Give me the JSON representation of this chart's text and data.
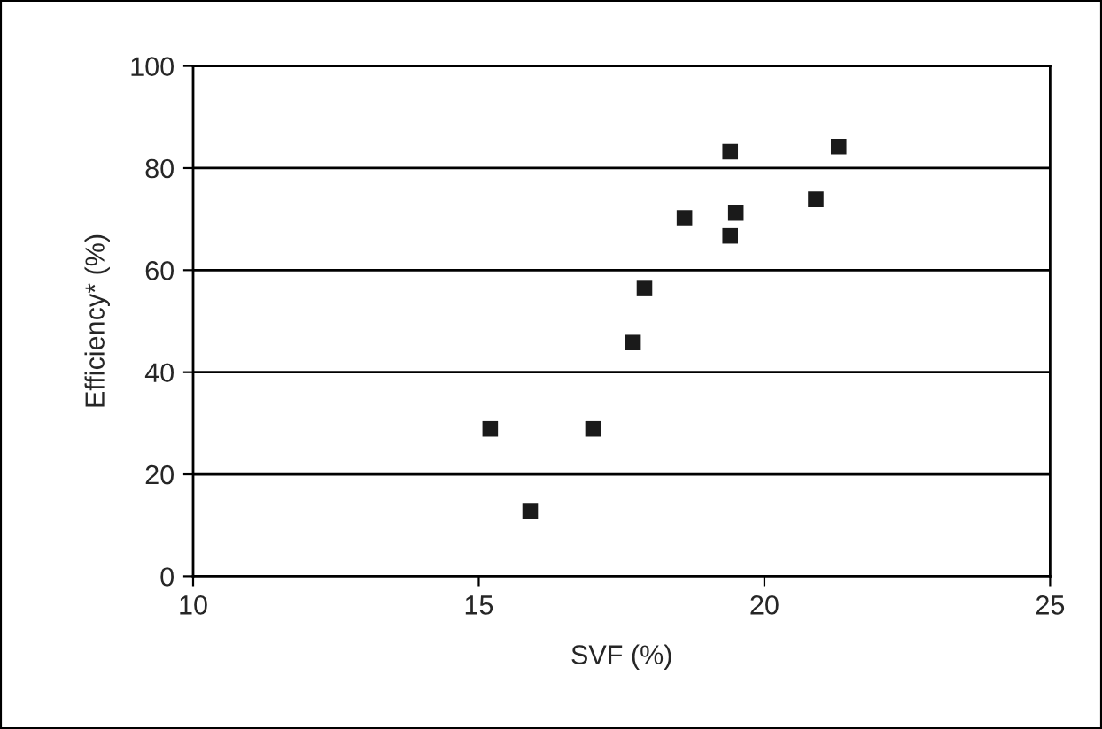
{
  "chart_data": {
    "type": "scatter",
    "xlabel": "SVF (%)",
    "ylabel": "Efficiency* (%)",
    "x": [
      15.2,
      15.9,
      17.0,
      17.7,
      17.9,
      18.6,
      19.4,
      19.5,
      19.4,
      20.9,
      21.3
    ],
    "series": [
      {
        "color": "#1a1a1a",
        "values": [
          28.9,
          12.7,
          28.9,
          45.8,
          56.4,
          70.3,
          83.2,
          71.2,
          66.7,
          73.9,
          84.2
        ]
      }
    ],
    "marker": "square",
    "xlim": [
      10,
      25
    ],
    "xticks": [
      10,
      15,
      20,
      25
    ],
    "ylim": [
      0,
      100
    ],
    "yticks": [
      0,
      20,
      40,
      60,
      80,
      100
    ],
    "grid": "y",
    "legend": false
  }
}
